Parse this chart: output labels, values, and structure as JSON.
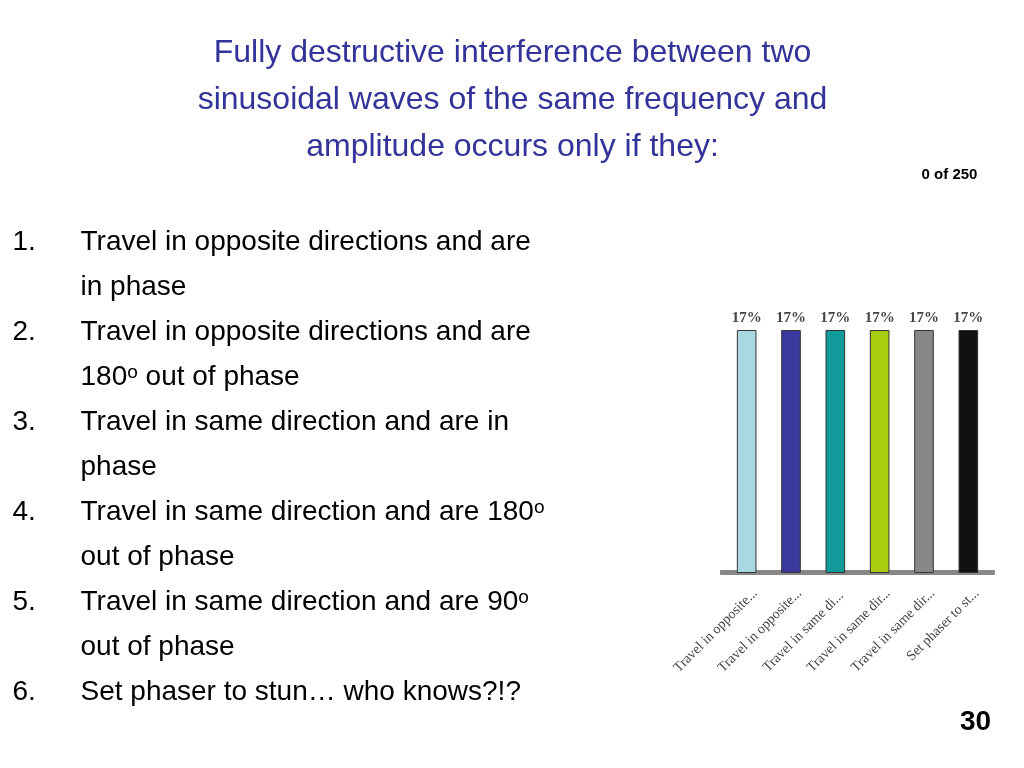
{
  "chart_data": {
    "type": "bar",
    "title": "Fully destructive interference between two sinusoidal waves of the same frequency and amplitude occurs only if they:",
    "categories": [
      "Travel in opposite...",
      "Travel in opposite...",
      "Travel in same  di...",
      "Travel in same dir...",
      "Travel in same dir...",
      "Set phaser to st..."
    ],
    "values": [
      17,
      17,
      17,
      17,
      17,
      17
    ],
    "value_labels": [
      "17%",
      "17%",
      "17%",
      "17%",
      "17%",
      "17%"
    ],
    "colors": [
      "#aad8e0",
      "#3a3a9e",
      "#109a9a",
      "#a8cc10",
      "#888888",
      "#111111"
    ],
    "annotations": [
      "1. Travel in opposite directions and are in phase",
      "2. Travel in opposite directions and are 180ᵒ out of phase",
      "3. Travel in same  direction and are in phase",
      "4. Travel in same direction and are 180ᵒ out of phase",
      "5. Travel in same direction and are 90ᵒ out of phase",
      "6. Set phaser to stun… who knows?!?",
      "0 of 250",
      "30"
    ]
  }
}
